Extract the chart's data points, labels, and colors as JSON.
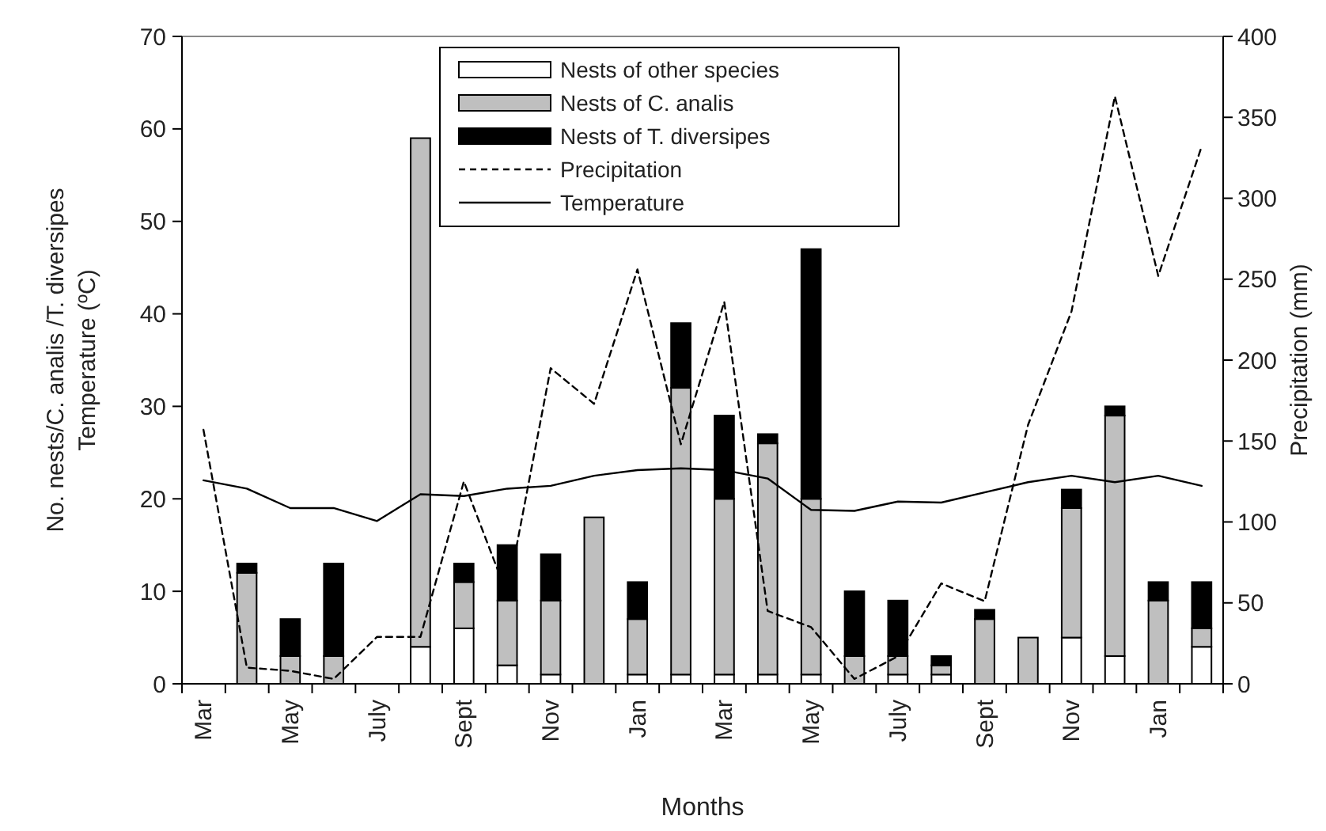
{
  "chart_data": {
    "type": "bar",
    "stacked": true,
    "xlabel": "Months",
    "ylabel": "No. nests/C. analis /T. diversipes\nTemperature (ºC)",
    "y2label": "Precipitation (mm)",
    "categories": [
      "Mar",
      null,
      "May",
      null,
      "July",
      null,
      "Sept",
      null,
      "Nov",
      null,
      "Jan",
      null,
      "Mar",
      null,
      "May",
      null,
      "July",
      null,
      "Sept",
      null,
      "Nov",
      null,
      "Jan",
      null
    ],
    "series": [
      {
        "name": "Nests of other species",
        "color": "#ffffff",
        "values": [
          0,
          0,
          0,
          0,
          0,
          4,
          6,
          2,
          1,
          0,
          1,
          1,
          1,
          1,
          1,
          0,
          1,
          1,
          0,
          0,
          5,
          3,
          0,
          4
        ]
      },
      {
        "name": "Nests of C. analis",
        "color": "#bfbfbf",
        "values": [
          0,
          12,
          3,
          3,
          0,
          55,
          5,
          7,
          8,
          18,
          6,
          31,
          19,
          25,
          19,
          3,
          2,
          1,
          7,
          5,
          14,
          26,
          9,
          2
        ]
      },
      {
        "name": "Nests of T. diversipes",
        "color": "#000000",
        "values": [
          0,
          1,
          4,
          10,
          0,
          0,
          2,
          6,
          5,
          0,
          4,
          7,
          9,
          1,
          27,
          7,
          6,
          1,
          1,
          0,
          2,
          1,
          2,
          5
        ]
      },
      {
        "name": "Precipitation",
        "type": "line",
        "axis": "y2",
        "line_style": "dashed",
        "color": "#000000",
        "values": [
          157,
          10,
          8,
          3,
          29,
          29,
          125,
          55,
          195,
          173,
          256,
          148,
          236,
          45,
          35,
          3,
          17,
          62,
          51,
          160,
          230,
          363,
          252,
          332
        ]
      },
      {
        "name": "Temperature",
        "type": "line",
        "line_style": "solid",
        "color": "#000000",
        "values": [
          22.0,
          21.1,
          19.0,
          19.0,
          17.6,
          20.5,
          20.3,
          21.1,
          21.4,
          22.5,
          23.1,
          23.3,
          23.1,
          22.2,
          18.8,
          18.7,
          19.7,
          19.6,
          20.7,
          21.8,
          22.5,
          21.8,
          22.5,
          21.4
        ]
      }
    ],
    "ylim": [
      0,
      70
    ],
    "yticks": [
      0,
      10,
      20,
      30,
      40,
      50,
      60,
      70
    ],
    "y2lim": [
      0,
      400
    ],
    "y2ticks": [
      0,
      50,
      100,
      150,
      200,
      250,
      300,
      350,
      400
    ],
    "legend": "top",
    "marker": "none",
    "grid": false
  }
}
